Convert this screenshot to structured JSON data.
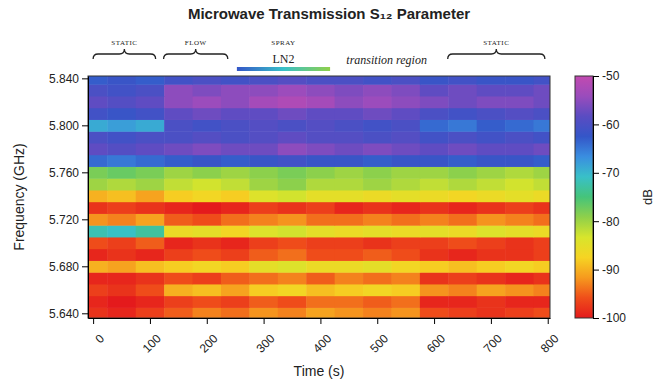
{
  "chart_data": {
    "type": "heatmap",
    "title": "Microwave Transmission S₁₂ Parameter",
    "x_label": "Time (s)",
    "y_label": "Frequency (GHz)",
    "xlim": [
      -9,
      804
    ],
    "ylim": [
      5.636,
      5.842
    ],
    "xticks": [
      0,
      100,
      200,
      300,
      400,
      500,
      600,
      700,
      800
    ],
    "yticks": [
      {
        "value": 5.64,
        "label": "5.640"
      },
      {
        "value": 5.68,
        "label": "5.680"
      },
      {
        "value": 5.72,
        "label": "5.720"
      },
      {
        "value": 5.76,
        "label": "5.760"
      },
      {
        "value": 5.8,
        "label": "5.800"
      },
      {
        "value": 5.84,
        "label": "5.840"
      }
    ],
    "x": [
      0,
      50,
      100,
      150,
      200,
      250,
      300,
      350,
      400,
      450,
      500,
      550,
      600,
      650,
      700,
      750,
      800
    ],
    "y": [
      5.64,
      5.65,
      5.66,
      5.67,
      5.68,
      5.69,
      5.7,
      5.71,
      5.72,
      5.73,
      5.74,
      5.75,
      5.76,
      5.77,
      5.78,
      5.79,
      5.8,
      5.81,
      5.82,
      5.83,
      5.84
    ],
    "z": [
      [
        -98,
        -99,
        -97,
        -95,
        -93,
        -94,
        -92,
        -93,
        -91,
        -92,
        -93,
        -92,
        -96,
        -97,
        -98,
        -97,
        -96
      ],
      [
        -99,
        -100,
        -99,
        -97,
        -96,
        -97,
        -95,
        -96,
        -94,
        -94,
        -95,
        -94,
        -99,
        -99,
        -98,
        -99,
        -99
      ],
      [
        -97,
        -98,
        -96,
        -90,
        -89,
        -91,
        -88,
        -87,
        -89,
        -88,
        -87,
        -88,
        -92,
        -93,
        -91,
        -92,
        -93
      ],
      [
        -99,
        -99,
        -98,
        -96,
        -97,
        -95,
        -94,
        -93,
        -95,
        -93,
        -94,
        -93,
        -98,
        -97,
        -98,
        -99,
        -98
      ],
      [
        -90,
        -91,
        -89,
        -88,
        -87,
        -88,
        -85,
        -84,
        -86,
        -86,
        -85,
        -87,
        -88,
        -89,
        -88,
        -87,
        -88
      ],
      [
        -99,
        -98,
        -99,
        -97,
        -96,
        -97,
        -95,
        -94,
        -96,
        -96,
        -95,
        -96,
        -98,
        -99,
        -98,
        -98,
        -97
      ],
      [
        -96,
        -97,
        -95,
        -99,
        -98,
        -99,
        -97,
        -96,
        -97,
        -97,
        -98,
        -97,
        -97,
        -96,
        -97,
        -98,
        -97
      ],
      [
        -72,
        -71,
        -73,
        -86,
        -85,
        -87,
        -84,
        -83,
        -85,
        -86,
        -85,
        -86,
        -85,
        -86,
        -84,
        -85,
        -86
      ],
      [
        -92,
        -93,
        -91,
        -95,
        -96,
        -94,
        -93,
        -92,
        -94,
        -94,
        -93,
        -94,
        -93,
        -94,
        -92,
        -93,
        -94
      ],
      [
        -98,
        -97,
        -98,
        -99,
        -100,
        -99,
        -97,
        -98,
        -97,
        -99,
        -98,
        -99,
        -98,
        -99,
        -98,
        -97,
        -98
      ],
      [
        -90,
        -89,
        -91,
        -88,
        -87,
        -88,
        -84,
        -83,
        -85,
        -85,
        -86,
        -85,
        -86,
        -87,
        -86,
        -85,
        -86
      ],
      [
        -80,
        -81,
        -80,
        -82,
        -83,
        -82,
        -80,
        -79,
        -81,
        -81,
        -80,
        -81,
        -82,
        -81,
        -82,
        -83,
        -82
      ],
      [
        -78,
        -77,
        -78,
        -80,
        -79,
        -80,
        -79,
        -78,
        -79,
        -80,
        -79,
        -80,
        -80,
        -79,
        -80,
        -81,
        -80
      ],
      [
        -64,
        -65,
        -64,
        -63,
        -62,
        -63,
        -62,
        -61,
        -62,
        -62,
        -63,
        -62,
        -62,
        -63,
        -62,
        -62,
        -63
      ],
      [
        -58,
        -59,
        -58,
        -57,
        -56,
        -57,
        -57,
        -55,
        -56,
        -57,
        -56,
        -57,
        -58,
        -57,
        -58,
        -58,
        -57
      ],
      [
        -60,
        -61,
        -60,
        -60,
        -59,
        -60,
        -59,
        -58,
        -59,
        -59,
        -60,
        -59,
        -61,
        -60,
        -61,
        -60,
        -61
      ],
      [
        -69,
        -68,
        -69,
        -60,
        -61,
        -60,
        -59,
        -60,
        -59,
        -60,
        -61,
        -60,
        -64,
        -65,
        -63,
        -64,
        -65
      ],
      [
        -61,
        -62,
        -61,
        -58,
        -57,
        -58,
        -58,
        -57,
        -58,
        -58,
        -57,
        -58,
        -60,
        -61,
        -60,
        -59,
        -60
      ],
      [
        -58,
        -59,
        -58,
        -55,
        -54,
        -55,
        -53,
        -52,
        -53,
        -55,
        -54,
        -55,
        -56,
        -57,
        -56,
        -56,
        -57
      ],
      [
        -60,
        -61,
        -60,
        -55,
        -56,
        -55,
        -55,
        -54,
        -55,
        -56,
        -55,
        -56,
        -58,
        -57,
        -58,
        -58,
        -57
      ],
      [
        -63,
        -62,
        -63,
        -61,
        -60,
        -61,
        -60,
        -59,
        -60,
        -60,
        -61,
        -60,
        -62,
        -61,
        -62,
        -62,
        -61
      ]
    ],
    "colorbar": {
      "range": [
        -100,
        -50
      ],
      "ticks": [
        -100,
        -90,
        -80,
        -70,
        -60,
        -50
      ],
      "label": "dB"
    },
    "annotations": [
      {
        "text": "STATIC",
        "x": [
          0,
          110
        ],
        "marker": "brace"
      },
      {
        "text": "FLOW",
        "x": [
          124,
          237
        ],
        "marker": "brace"
      },
      {
        "text": "LN2",
        "label": "SPRAY",
        "x": [
          253,
          417
        ],
        "marker": "bar"
      },
      {
        "text": "transition region",
        "x": [
          440,
          593
        ]
      },
      {
        "text": "STATIC",
        "x": [
          624,
          795
        ],
        "marker": "brace"
      }
    ]
  }
}
